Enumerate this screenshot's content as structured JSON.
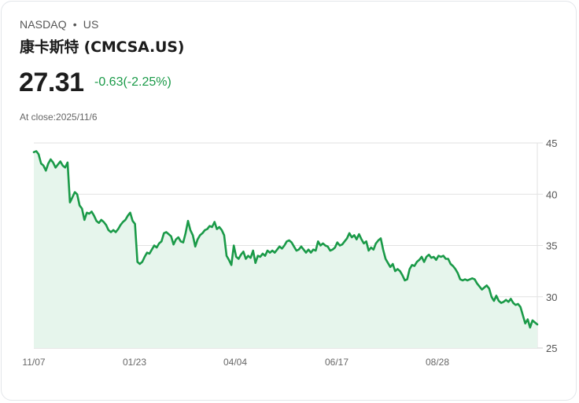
{
  "header": {
    "exchange": "NASDAQ",
    "separator": "•",
    "region": "US",
    "title": "康卡斯特 (CMCSA.US)",
    "price": "27.31",
    "change": "-0.63(-2.25%)",
    "close_label": "At close:2025/11/6"
  },
  "colors": {
    "line": "#1a9a48",
    "fill": "#e6f5ec",
    "grid": "#e2e2e2",
    "change": "#1a9a48"
  },
  "chart_data": {
    "type": "area",
    "title": "",
    "xlabel": "",
    "ylabel": "",
    "ylim": [
      25,
      45
    ],
    "yticks": [
      45,
      40,
      35,
      30,
      25
    ],
    "xticks": [
      "11/07",
      "01/23",
      "04/04",
      "06/17",
      "08/28"
    ],
    "grid": true,
    "legend": "none",
    "series": [
      {
        "name": "CMCSA.US",
        "values": [
          44.1,
          44.2,
          43.9,
          43.0,
          42.8,
          42.3,
          43.0,
          43.4,
          43.1,
          42.6,
          42.9,
          43.2,
          42.8,
          42.6,
          43.1,
          39.2,
          39.7,
          40.2,
          40.0,
          38.9,
          38.6,
          37.5,
          38.2,
          38.1,
          38.3,
          37.9,
          37.4,
          37.2,
          37.5,
          37.3,
          37.0,
          36.5,
          36.3,
          36.5,
          36.3,
          36.6,
          37.0,
          37.3,
          37.5,
          37.9,
          38.2,
          37.4,
          37.1,
          33.4,
          33.2,
          33.4,
          33.9,
          34.3,
          34.2,
          34.6,
          35.0,
          34.8,
          35.2,
          35.4,
          36.2,
          36.3,
          36.1,
          35.9,
          35.1,
          35.6,
          35.8,
          35.4,
          35.3,
          36.2,
          37.4,
          36.5,
          36.0,
          34.9,
          35.6,
          36.0,
          36.2,
          36.5,
          36.6,
          36.9,
          36.8,
          37.3,
          36.6,
          36.8,
          36.5,
          36.0,
          34.0,
          33.6,
          33.1,
          35.0,
          33.9,
          33.7,
          34.1,
          34.4,
          33.7,
          34.0,
          33.8,
          34.5,
          33.3,
          34.0,
          33.9,
          34.2,
          34.0,
          34.5,
          34.3,
          34.5,
          34.3,
          34.6,
          34.9,
          34.7,
          35.0,
          35.4,
          35.5,
          35.3,
          34.9,
          34.5,
          34.6,
          34.9,
          34.6,
          34.3,
          34.6,
          34.3,
          34.6,
          34.5,
          35.4,
          35.0,
          35.2,
          35.0,
          34.9,
          34.5,
          34.6,
          34.8,
          35.3,
          35.0,
          35.1,
          35.4,
          35.7,
          36.2,
          35.8,
          36.0,
          35.6,
          36.1,
          35.6,
          35.2,
          35.4,
          34.5,
          34.8,
          34.6,
          35.2,
          35.5,
          35.7,
          34.6,
          33.7,
          33.3,
          32.9,
          33.2,
          32.5,
          32.7,
          32.5,
          32.1,
          31.6,
          31.7,
          32.7,
          33.1,
          33.0,
          33.4,
          33.6,
          33.9,
          33.4,
          33.9,
          34.1,
          33.8,
          33.9,
          33.6,
          34.0,
          33.9,
          34.0,
          33.7,
          33.7,
          33.2,
          33.0,
          32.7,
          32.3,
          31.7,
          31.6,
          31.7,
          31.6,
          31.7,
          31.8,
          31.7,
          31.3,
          31.0,
          30.7,
          30.9,
          31.1,
          30.8,
          30.0,
          29.6,
          30.1,
          29.6,
          29.4,
          29.5,
          29.7,
          29.5,
          29.8,
          29.4,
          29.2,
          29.3,
          29.0,
          28.2,
          27.4,
          27.8,
          27.0,
          27.7,
          27.5,
          27.3
        ]
      }
    ]
  }
}
